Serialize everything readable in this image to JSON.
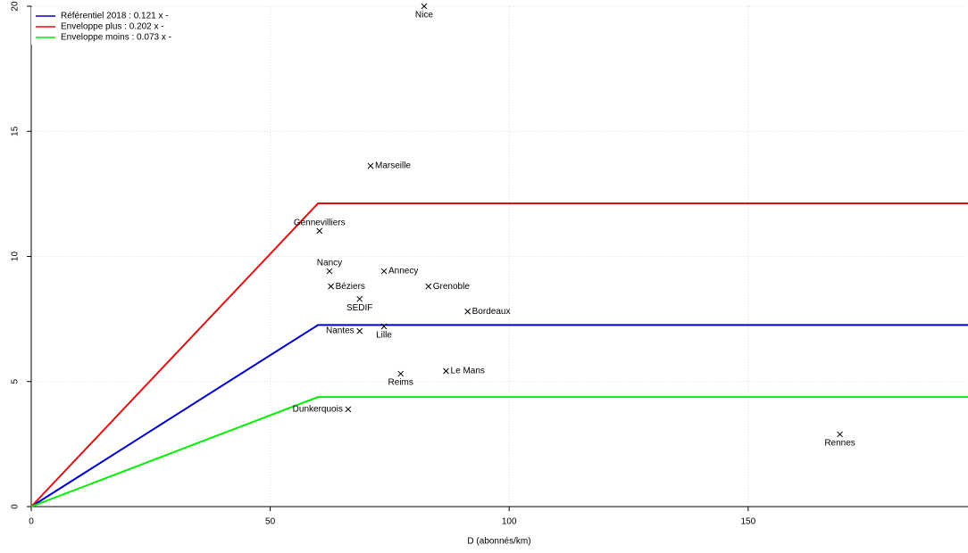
{
  "chart_data": {
    "type": "line",
    "x_label": "D (abonnés/km)",
    "xlim": [
      0,
      196
    ],
    "ylim": [
      0,
      20
    ],
    "xticks": [
      0,
      50,
      100,
      150
    ],
    "yticks": [
      0,
      5,
      10,
      15,
      20
    ],
    "grid": true,
    "legend": "top-left",
    "series": [
      {
        "name": "Référentiel 2018 : 0.121 x    -",
        "color": "#0000cc",
        "x": [
          0,
          60,
          196
        ],
        "values": [
          0,
          7.26,
          7.26
        ]
      },
      {
        "name": "Enveloppe plus   :  0.202 x    -",
        "color": "#e01010",
        "x": [
          0,
          60,
          196
        ],
        "values": [
          0,
          12.12,
          12.12
        ]
      },
      {
        "name": "Enveloppe moins : 0.073 x    -",
        "color": "#00ee00",
        "x": [
          0,
          60,
          196
        ],
        "values": [
          0,
          4.38,
          4.38
        ]
      }
    ],
    "points": {
      "labels": [
        "Nice",
        "Marseille",
        "Gennevilliers",
        "Nancy",
        "Annecy",
        "Béziers",
        "Grenoble",
        "SEDIF",
        "Bordeaux",
        "Nantes",
        "Lille",
        "Reims",
        "Le Mans",
        "Dunkerquois",
        "Rennes"
      ],
      "x": [
        82.2,
        71,
        60.3,
        62.4,
        73.8,
        62.7,
        83.1,
        68.7,
        91.3,
        68.7,
        73.8,
        77.3,
        86.8,
        66.3,
        169.2
      ],
      "values": [
        20,
        13.62,
        11.02,
        9.41,
        9.41,
        8.8,
        8.8,
        8.3,
        7.8,
        7.02,
        7.2,
        5.31,
        5.42,
        3.89,
        2.89
      ]
    }
  }
}
